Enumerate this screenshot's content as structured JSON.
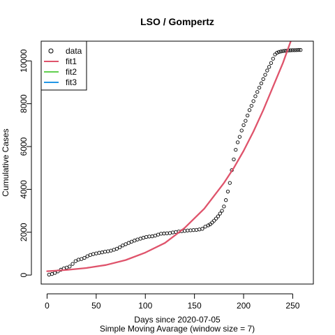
{
  "chart_data": {
    "type": "scatter",
    "title": "LSO / Gompertz",
    "xlabel": "Days since 2020-07-05",
    "xlabel_sub": "Simple Moving Avarage (window size = 7)",
    "ylabel": "Cumulative Cases",
    "xlim": [
      -6,
      271
    ],
    "ylim": [
      -420,
      10920
    ],
    "x_ticks": [
      0,
      50,
      100,
      150,
      200,
      250
    ],
    "x_tick_labels": [
      "0",
      "50",
      "100",
      "150",
      "200",
      "250"
    ],
    "y_ticks": [
      0,
      2000,
      4000,
      6000,
      8000,
      10000
    ],
    "y_tick_labels": [
      "0",
      "2000",
      "4000",
      "6000",
      "8000",
      "10000"
    ],
    "legend": {
      "position": "top-left",
      "entries": [
        {
          "label": "data",
          "marker": "open-circle",
          "color": "#000000"
        },
        {
          "label": "fit1",
          "marker": "line",
          "color": "#DF536B"
        },
        {
          "label": "fit2",
          "marker": "line",
          "color": "#61D04F"
        },
        {
          "label": "fit3",
          "marker": "line",
          "color": "#2297E6"
        }
      ]
    },
    "data_series": {
      "name": "data",
      "color": "#000000",
      "x": [
        2,
        5,
        8,
        11,
        14,
        17,
        20,
        23,
        26,
        29,
        32,
        35,
        38,
        41,
        44,
        47,
        50,
        53,
        56,
        59,
        62,
        65,
        68,
        71,
        74,
        77,
        80,
        83,
        86,
        89,
        92,
        95,
        98,
        101,
        104,
        107,
        110,
        113,
        116,
        119,
        122,
        125,
        128,
        131,
        134,
        137,
        140,
        143,
        146,
        149,
        152,
        155,
        158,
        161,
        164,
        166,
        168,
        170,
        172,
        174,
        176,
        178,
        180,
        182,
        184,
        186,
        188,
        190,
        192,
        194,
        196,
        198,
        200,
        202,
        204,
        206,
        208,
        210,
        212,
        214,
        216,
        218,
        220,
        222,
        224,
        226,
        228,
        230,
        232,
        234,
        236,
        238,
        240,
        242,
        244,
        246,
        248,
        250,
        252,
        254,
        256,
        258
      ],
      "y": [
        20,
        50,
        100,
        170,
        250,
        310,
        350,
        400,
        520,
        650,
        720,
        750,
        800,
        880,
        940,
        980,
        1010,
        1040,
        1060,
        1090,
        1110,
        1140,
        1180,
        1230,
        1300,
        1380,
        1440,
        1500,
        1560,
        1610,
        1660,
        1700,
        1740,
        1780,
        1800,
        1810,
        1840,
        1890,
        1930,
        1940,
        1950,
        1960,
        1990,
        2010,
        2030,
        2050,
        2060,
        2080,
        2090,
        2100,
        2110,
        2130,
        2160,
        2260,
        2320,
        2370,
        2450,
        2540,
        2640,
        2740,
        2870,
        3000,
        3200,
        3500,
        3900,
        4300,
        4900,
        5400,
        5850,
        6200,
        6450,
        6750,
        7000,
        7200,
        7450,
        7700,
        7900,
        8120,
        8350,
        8550,
        8750,
        8950,
        9150,
        9350,
        9550,
        9720,
        9900,
        10100,
        10300,
        10380,
        10420,
        10440,
        10460,
        10470,
        10480,
        10490,
        10495,
        10500,
        10500,
        10505,
        10510,
        10510
      ]
    },
    "fit_series": [
      {
        "name": "fit1",
        "color": "#DF536B",
        "x": [
          0,
          20,
          40,
          60,
          80,
          100,
          120,
          140,
          160,
          180,
          190,
          200,
          210,
          220,
          230,
          240,
          248
        ],
        "y": [
          180,
          240,
          330,
          470,
          700,
          1050,
          1500,
          2200,
          3100,
          4300,
          5000,
          5800,
          6700,
          7700,
          8800,
          9900,
          10920
        ]
      }
    ]
  }
}
